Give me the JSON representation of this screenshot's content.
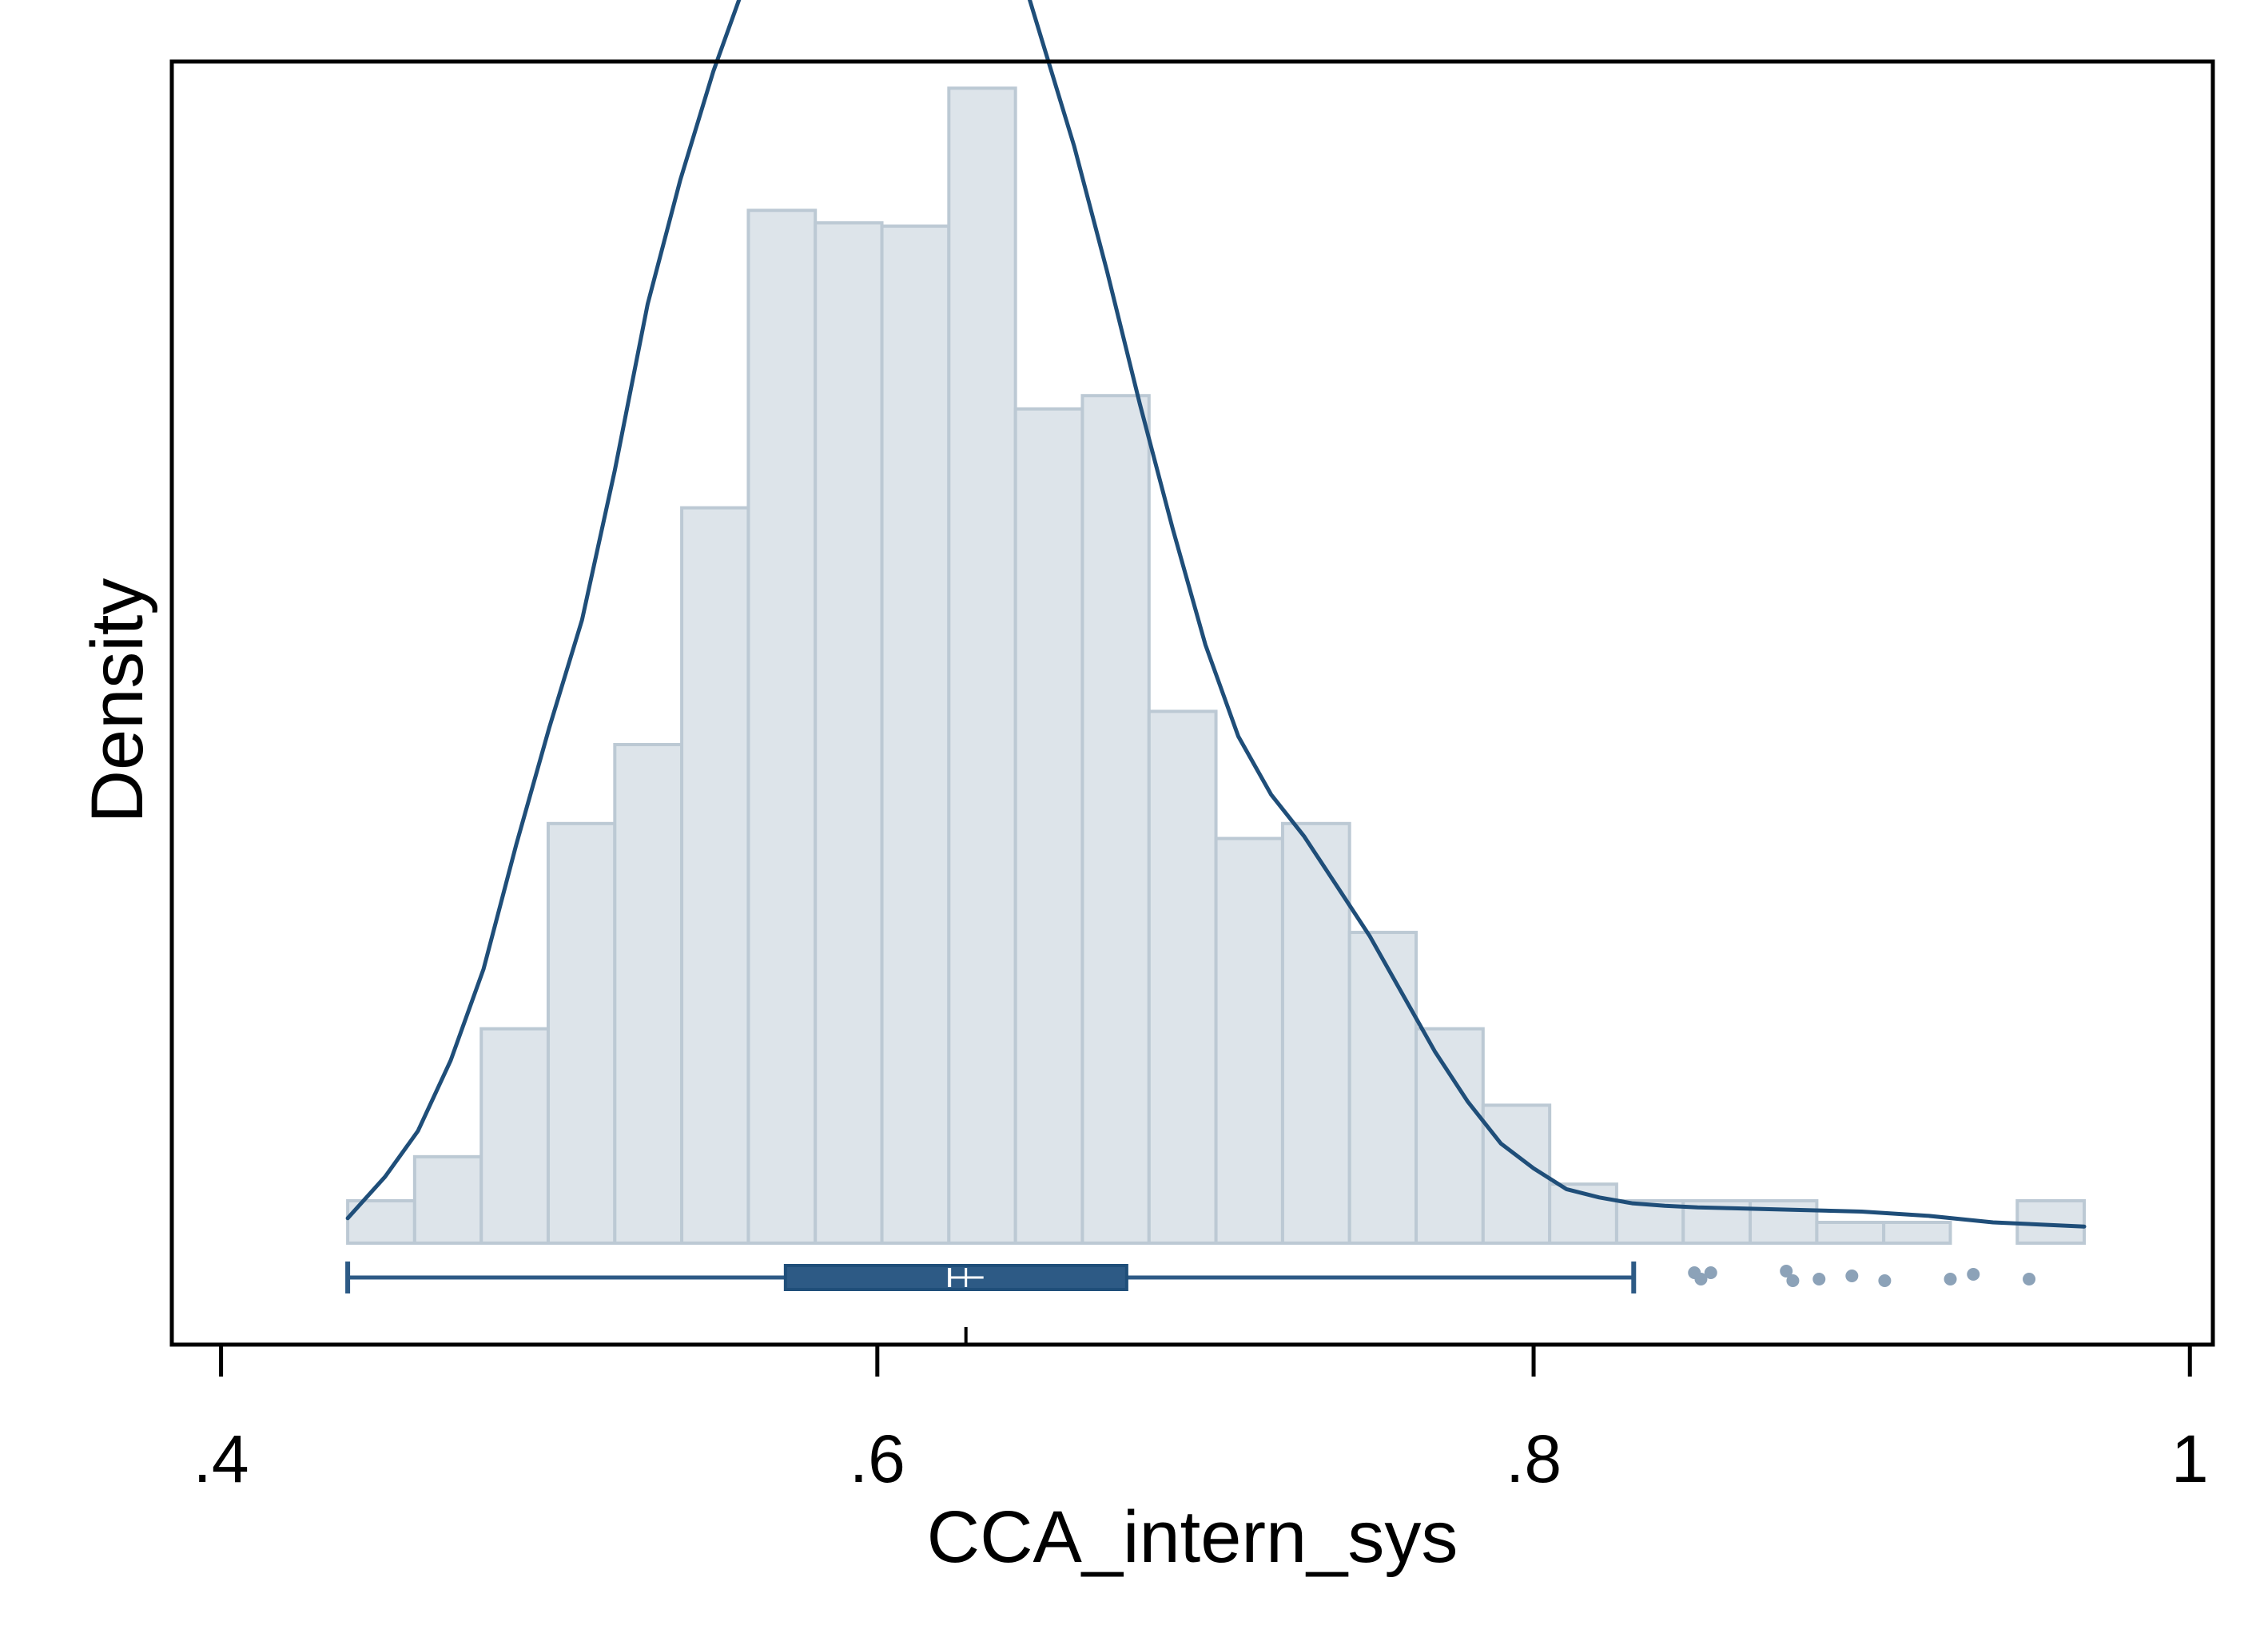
{
  "chart_data": {
    "type": "bar",
    "subtype": "histogram with kernel density overlay and horizontal box plot",
    "title": "",
    "xlabel": "CCA_intern_sys",
    "ylabel": "Density",
    "xlim": [
      0.385,
      1.007
    ],
    "x_ticks": [
      0.4,
      0.6,
      0.8,
      1.0
    ],
    "x_tick_labels": [
      ".4",
      ".6",
      ".8",
      "1"
    ],
    "y_ticks_shown": false,
    "grid": false,
    "legend": "none",
    "colors": {
      "bar_fill": "#dde4ea",
      "bar_edge": "#bcc9d4",
      "density_line": "#1f4e79",
      "box": "#2d5a85",
      "outliers": "#8ca2b8",
      "frame": "#000000"
    },
    "histogram": {
      "bin_width": 0.02035,
      "bins": [
        {
          "x0": 0.4386,
          "x1": 0.459,
          "density": 0.51
        },
        {
          "x0": 0.459,
          "x1": 0.4793,
          "density": 1.04
        },
        {
          "x0": 0.4793,
          "x1": 0.4997,
          "density": 2.58
        },
        {
          "x0": 0.4997,
          "x1": 0.52,
          "density": 5.05
        },
        {
          "x0": 0.52,
          "x1": 0.5404,
          "density": 6.0
        },
        {
          "x0": 0.5404,
          "x1": 0.5607,
          "density": 8.85
        },
        {
          "x0": 0.5607,
          "x1": 0.5811,
          "density": 12.43
        },
        {
          "x0": 0.5811,
          "x1": 0.6014,
          "density": 12.28
        },
        {
          "x0": 0.6014,
          "x1": 0.6218,
          "density": 12.24
        },
        {
          "x0": 0.6218,
          "x1": 0.6421,
          "density": 13.9
        },
        {
          "x0": 0.6421,
          "x1": 0.6625,
          "density": 10.04
        },
        {
          "x0": 0.6625,
          "x1": 0.6828,
          "density": 10.2
        },
        {
          "x0": 0.6828,
          "x1": 0.7032,
          "density": 6.4
        },
        {
          "x0": 0.7032,
          "x1": 0.7235,
          "density": 4.87
        },
        {
          "x0": 0.7235,
          "x1": 0.7439,
          "density": 5.05
        },
        {
          "x0": 0.7439,
          "x1": 0.7642,
          "density": 3.74
        },
        {
          "x0": 0.7642,
          "x1": 0.7846,
          "density": 2.58
        },
        {
          "x0": 0.7846,
          "x1": 0.8049,
          "density": 1.66
        },
        {
          "x0": 0.8049,
          "x1": 0.8253,
          "density": 0.71
        },
        {
          "x0": 0.8253,
          "x1": 0.8456,
          "density": 0.51
        },
        {
          "x0": 0.8456,
          "x1": 0.866,
          "density": 0.51
        },
        {
          "x0": 0.866,
          "x1": 0.8863,
          "density": 0.51
        },
        {
          "x0": 0.8863,
          "x1": 0.9067,
          "density": 0.25
        },
        {
          "x0": 0.9067,
          "x1": 0.927,
          "density": 0.25
        },
        {
          "x0": 0.9474,
          "x1": 0.9678,
          "density": 0.51
        }
      ]
    },
    "density_curve": {
      "x": [
        0.4386,
        0.45,
        0.46,
        0.47,
        0.48,
        0.49,
        0.5,
        0.51,
        0.52,
        0.53,
        0.54,
        0.55,
        0.56,
        0.57,
        0.58,
        0.59,
        0.6,
        0.605,
        0.61,
        0.62,
        0.63,
        0.64,
        0.65,
        0.66,
        0.67,
        0.68,
        0.69,
        0.7,
        0.71,
        0.72,
        0.73,
        0.74,
        0.75,
        0.76,
        0.77,
        0.78,
        0.79,
        0.8,
        0.81,
        0.82,
        0.83,
        0.84,
        0.85,
        0.86,
        0.88,
        0.9,
        0.92,
        0.94,
        0.9678
      ],
      "y": [
        0.3,
        0.8,
        1.35,
        2.2,
        3.3,
        4.8,
        6.2,
        7.5,
        9.3,
        11.3,
        12.8,
        14.1,
        15.2,
        15.9,
        16.5,
        17.1,
        17.4,
        17.45,
        17.45,
        17.2,
        16.7,
        15.8,
        14.5,
        13.2,
        11.7,
        10.1,
        8.6,
        7.2,
        6.1,
        5.4,
        4.9,
        4.3,
        3.7,
        3.0,
        2.3,
        1.7,
        1.2,
        0.9,
        0.65,
        0.55,
        0.48,
        0.45,
        0.43,
        0.42,
        0.4,
        0.38,
        0.33,
        0.25,
        0.2
      ]
    },
    "boxplot": {
      "whisker_low": 0.4386,
      "q1": 0.572,
      "median": 0.622,
      "mean": 0.627,
      "q3": 0.676,
      "whisker_high": 0.8305,
      "outliers": [
        0.849,
        0.851,
        0.854,
        0.877,
        0.879,
        0.887,
        0.897,
        0.907,
        0.927,
        0.934,
        0.951
      ]
    }
  }
}
